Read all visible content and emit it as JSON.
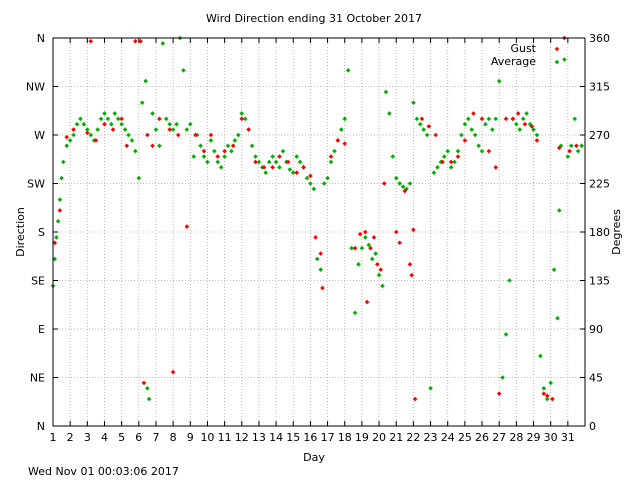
{
  "chart_data": {
    "type": "scatter",
    "title": "Wird Direction ending 31 October 2017",
    "xlabel": "Day",
    "ylabel_left": "Direction",
    "ylabel_right": "Degrees",
    "footer": "Wed Nov 01 00:03:06 2017",
    "xlim": [
      1,
      32
    ],
    "ylim": [
      0,
      360
    ],
    "x_ticks": [
      "1",
      "2",
      "3",
      "4",
      "5",
      "6",
      "7",
      "8",
      "9",
      "10",
      "11",
      "12",
      "13",
      "14",
      "15",
      "16",
      "17",
      "18",
      "19",
      "20",
      "21",
      "22",
      "23",
      "24",
      "25",
      "26",
      "27",
      "28",
      "29",
      "30",
      "31"
    ],
    "y_left_ticks": [
      {
        "value": 0,
        "label": "N"
      },
      {
        "value": 45,
        "label": "NE"
      },
      {
        "value": 90,
        "label": "E"
      },
      {
        "value": 135,
        "label": "SE"
      },
      {
        "value": 180,
        "label": "S"
      },
      {
        "value": 225,
        "label": "SW"
      },
      {
        "value": 270,
        "label": "W"
      },
      {
        "value": 315,
        "label": "NW"
      },
      {
        "value": 360,
        "label": "N"
      }
    ],
    "y_right_ticks": [
      "0",
      "45",
      "90",
      "135",
      "180",
      "225",
      "270",
      "315",
      "360"
    ],
    "grid": true,
    "legend_position": "top-right",
    "series": [
      {
        "name": "Gust",
        "color": "#ff0000",
        "points": [
          [
            1.1,
            170
          ],
          [
            1.4,
            200
          ],
          [
            1.8,
            268
          ],
          [
            2.2,
            275
          ],
          [
            3.0,
            272
          ],
          [
            3.2,
            357
          ],
          [
            3.5,
            265
          ],
          [
            4.0,
            280
          ],
          [
            4.5,
            275
          ],
          [
            5.0,
            285
          ],
          [
            5.3,
            260
          ],
          [
            5.8,
            357
          ],
          [
            6.1,
            357
          ],
          [
            6.3,
            40
          ],
          [
            6.5,
            270
          ],
          [
            6.8,
            260
          ],
          [
            7.2,
            285
          ],
          [
            7.8,
            275
          ],
          [
            8.0,
            50
          ],
          [
            8.3,
            270
          ],
          [
            8.8,
            185
          ],
          [
            9.3,
            270
          ],
          [
            9.8,
            255
          ],
          [
            10.2,
            270
          ],
          [
            10.6,
            250
          ],
          [
            11.0,
            255
          ],
          [
            11.5,
            260
          ],
          [
            12.0,
            285
          ],
          [
            12.4,
            275
          ],
          [
            12.8,
            245
          ],
          [
            13.3,
            240
          ],
          [
            13.8,
            240
          ],
          [
            14.2,
            250
          ],
          [
            14.7,
            245
          ],
          [
            15.2,
            235
          ],
          [
            15.6,
            240
          ],
          [
            16.0,
            232
          ],
          [
            16.3,
            175
          ],
          [
            16.6,
            160
          ],
          [
            16.7,
            128
          ],
          [
            17.2,
            250
          ],
          [
            17.6,
            265
          ],
          [
            18.0,
            262
          ],
          [
            18.6,
            165
          ],
          [
            18.9,
            178
          ],
          [
            19.2,
            180
          ],
          [
            19.3,
            115
          ],
          [
            19.5,
            165
          ],
          [
            19.7,
            175
          ],
          [
            19.9,
            150
          ],
          [
            20.1,
            145
          ],
          [
            20.3,
            225
          ],
          [
            21.0,
            180
          ],
          [
            21.2,
            170
          ],
          [
            21.5,
            218
          ],
          [
            21.8,
            150
          ],
          [
            21.9,
            140
          ],
          [
            22.0,
            182
          ],
          [
            22.1,
            25
          ],
          [
            22.5,
            285
          ],
          [
            22.9,
            278
          ],
          [
            23.3,
            270
          ],
          [
            23.7,
            245
          ],
          [
            24.2,
            245
          ],
          [
            24.6,
            250
          ],
          [
            25.0,
            265
          ],
          [
            25.5,
            290
          ],
          [
            26.0,
            285
          ],
          [
            26.4,
            255
          ],
          [
            26.8,
            240
          ],
          [
            27.0,
            30
          ],
          [
            27.4,
            285
          ],
          [
            27.8,
            285
          ],
          [
            28.1,
            290
          ],
          [
            28.5,
            280
          ],
          [
            28.9,
            278
          ],
          [
            29.2,
            265
          ],
          [
            29.6,
            30
          ],
          [
            29.8,
            28
          ],
          [
            30.1,
            25
          ],
          [
            30.5,
            258
          ],
          [
            30.8,
            360
          ],
          [
            31.1,
            255
          ],
          [
            31.5,
            260
          ]
        ]
      },
      {
        "name": "Average",
        "color": "#00b000",
        "points": [
          [
            1.0,
            130
          ],
          [
            1.1,
            155
          ],
          [
            1.2,
            175
          ],
          [
            1.3,
            190
          ],
          [
            1.4,
            210
          ],
          [
            1.5,
            230
          ],
          [
            1.6,
            245
          ],
          [
            1.8,
            260
          ],
          [
            2.0,
            265
          ],
          [
            2.2,
            270
          ],
          [
            2.4,
            280
          ],
          [
            2.6,
            285
          ],
          [
            2.8,
            280
          ],
          [
            3.0,
            275
          ],
          [
            3.2,
            270
          ],
          [
            3.4,
            265
          ],
          [
            3.6,
            275
          ],
          [
            3.8,
            285
          ],
          [
            4.0,
            290
          ],
          [
            4.2,
            285
          ],
          [
            4.4,
            280
          ],
          [
            4.6,
            290
          ],
          [
            4.8,
            285
          ],
          [
            5.0,
            280
          ],
          [
            5.2,
            275
          ],
          [
            5.4,
            270
          ],
          [
            5.6,
            265
          ],
          [
            5.8,
            255
          ],
          [
            6.0,
            230
          ],
          [
            6.2,
            300
          ],
          [
            6.4,
            320
          ],
          [
            6.5,
            35
          ],
          [
            6.6,
            25
          ],
          [
            6.8,
            290
          ],
          [
            7.0,
            275
          ],
          [
            7.2,
            260
          ],
          [
            7.4,
            355
          ],
          [
            7.6,
            285
          ],
          [
            7.8,
            280
          ],
          [
            8.0,
            275
          ],
          [
            8.2,
            280
          ],
          [
            8.4,
            360
          ],
          [
            8.6,
            330
          ],
          [
            8.8,
            275
          ],
          [
            9.0,
            280
          ],
          [
            9.2,
            250
          ],
          [
            9.4,
            270
          ],
          [
            9.6,
            260
          ],
          [
            9.8,
            250
          ],
          [
            10.0,
            245
          ],
          [
            10.2,
            265
          ],
          [
            10.4,
            255
          ],
          [
            10.6,
            245
          ],
          [
            10.8,
            240
          ],
          [
            11.0,
            250
          ],
          [
            11.2,
            260
          ],
          [
            11.4,
            255
          ],
          [
            11.6,
            265
          ],
          [
            11.8,
            270
          ],
          [
            12.0,
            290
          ],
          [
            12.2,
            285
          ],
          [
            12.4,
            275
          ],
          [
            12.6,
            260
          ],
          [
            12.8,
            250
          ],
          [
            13.0,
            245
          ],
          [
            13.2,
            240
          ],
          [
            13.4,
            235
          ],
          [
            13.6,
            245
          ],
          [
            13.8,
            250
          ],
          [
            14.0,
            245
          ],
          [
            14.2,
            240
          ],
          [
            14.4,
            255
          ],
          [
            14.6,
            245
          ],
          [
            14.8,
            238
          ],
          [
            15.0,
            235
          ],
          [
            15.2,
            250
          ],
          [
            15.4,
            245
          ],
          [
            15.6,
            240
          ],
          [
            15.8,
            230
          ],
          [
            16.0,
            225
          ],
          [
            16.2,
            220
          ],
          [
            16.4,
            155
          ],
          [
            16.6,
            145
          ],
          [
            16.8,
            225
          ],
          [
            17.0,
            230
          ],
          [
            17.2,
            245
          ],
          [
            17.4,
            255
          ],
          [
            17.6,
            265
          ],
          [
            17.8,
            275
          ],
          [
            18.0,
            285
          ],
          [
            18.2,
            330
          ],
          [
            18.4,
            165
          ],
          [
            18.6,
            105
          ],
          [
            18.8,
            150
          ],
          [
            19.0,
            165
          ],
          [
            19.2,
            175
          ],
          [
            19.4,
            168
          ],
          [
            19.6,
            155
          ],
          [
            19.8,
            160
          ],
          [
            20.0,
            140
          ],
          [
            20.2,
            130
          ],
          [
            20.4,
            310
          ],
          [
            20.6,
            290
          ],
          [
            20.8,
            250
          ],
          [
            21.0,
            230
          ],
          [
            21.2,
            225
          ],
          [
            21.4,
            222
          ],
          [
            21.6,
            220
          ],
          [
            21.8,
            225
          ],
          [
            22.0,
            300
          ],
          [
            22.2,
            285
          ],
          [
            22.4,
            280
          ],
          [
            22.6,
            275
          ],
          [
            22.8,
            270
          ],
          [
            23.0,
            35
          ],
          [
            23.2,
            235
          ],
          [
            23.4,
            240
          ],
          [
            23.6,
            245
          ],
          [
            23.8,
            250
          ],
          [
            24.0,
            255
          ],
          [
            24.2,
            240
          ],
          [
            24.4,
            245
          ],
          [
            24.6,
            255
          ],
          [
            24.8,
            270
          ],
          [
            25.0,
            280
          ],
          [
            25.2,
            285
          ],
          [
            25.4,
            275
          ],
          [
            25.6,
            270
          ],
          [
            25.8,
            260
          ],
          [
            26.0,
            255
          ],
          [
            26.2,
            280
          ],
          [
            26.4,
            285
          ],
          [
            26.6,
            275
          ],
          [
            26.8,
            285
          ],
          [
            27.0,
            320
          ],
          [
            27.2,
            45
          ],
          [
            27.4,
            85
          ],
          [
            27.6,
            135
          ],
          [
            27.8,
            285
          ],
          [
            28.0,
            280
          ],
          [
            28.2,
            275
          ],
          [
            28.4,
            285
          ],
          [
            28.6,
            290
          ],
          [
            28.8,
            280
          ],
          [
            29.0,
            275
          ],
          [
            29.2,
            270
          ],
          [
            29.4,
            65
          ],
          [
            29.6,
            35
          ],
          [
            29.8,
            25
          ],
          [
            30.0,
            40
          ],
          [
            30.2,
            145
          ],
          [
            30.4,
            100
          ],
          [
            30.5,
            200
          ],
          [
            30.6,
            260
          ],
          [
            30.8,
            340
          ],
          [
            31.0,
            250
          ],
          [
            31.2,
            260
          ],
          [
            31.4,
            285
          ],
          [
            31.6,
            255
          ],
          [
            31.8,
            260
          ]
        ]
      }
    ]
  }
}
